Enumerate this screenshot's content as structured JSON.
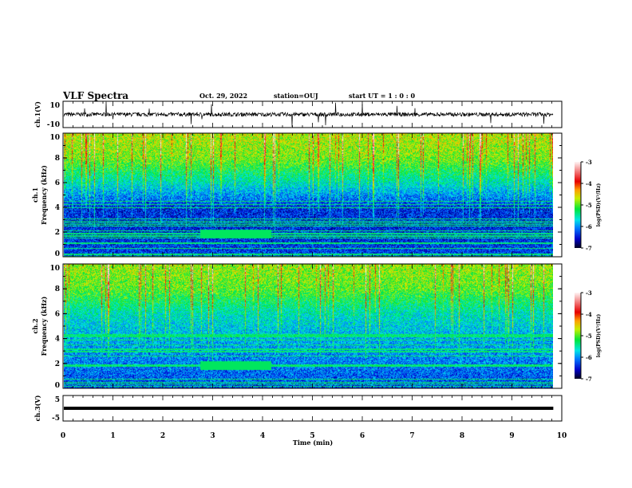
{
  "chart_data": {
    "type": "heatmap",
    "title": "VLF Spectra",
    "date": "Oct. 29, 2022",
    "station": "station=OUJ",
    "start": "start  UT =   1 : 0  : 0",
    "xlabel": "Time  (min)",
    "xlim": [
      0,
      10
    ],
    "xticks": [
      "0",
      "1",
      "2",
      "3",
      "4",
      "5",
      "6",
      "7",
      "8",
      "9",
      "10"
    ],
    "data_end_min": 9.83,
    "panels": [
      {
        "id": "ch1",
        "type": "line",
        "ylabel": "ch.1(V)",
        "ylim": [
          -10,
          10
        ],
        "yticks": [
          "10",
          "-10"
        ],
        "mean": 0,
        "noise_amplitude": 1.5
      },
      {
        "id": "spec1",
        "type": "heatmap",
        "ylabel1": "ch.1",
        "ylabel2": "Frequency  (kHz)",
        "ylim": [
          0,
          10
        ],
        "yticks": [
          "0",
          "2",
          "4",
          "6",
          "8",
          "10"
        ],
        "freq_bands_khz": [
          0,
          2,
          4,
          6,
          8,
          10
        ],
        "band_mean_logpsd": [
          -6.3,
          -6.4,
          -6.4,
          -5.6,
          -4.9,
          -4.7
        ],
        "colorbar": {
          "label": "log(PSD)(V²/Hz)",
          "range": [
            -7,
            -3
          ],
          "ticks": [
            "-3",
            "-4",
            "-5",
            "-6",
            "-7"
          ]
        }
      },
      {
        "id": "spec2",
        "type": "heatmap",
        "ylabel1": "ch.2",
        "ylabel2": "Frequency  (kHz)",
        "ylim": [
          0,
          10
        ],
        "yticks": [
          "0",
          "2",
          "4",
          "6",
          "8",
          "10"
        ],
        "freq_bands_khz": [
          0,
          2,
          4,
          6,
          8,
          10
        ],
        "band_mean_logpsd": [
          -6.3,
          -6.1,
          -5.9,
          -5.6,
          -5.0,
          -4.8
        ],
        "colorbar": {
          "label": "log(PSD)(V²/Hz)",
          "range": [
            -7,
            -3
          ],
          "ticks": [
            "-3",
            "-4",
            "-5",
            "-6",
            "-7"
          ]
        }
      },
      {
        "id": "ch3",
        "type": "line",
        "ylabel": "ch.3(V)",
        "ylim": [
          -5,
          5
        ],
        "yticks": [
          "5",
          "-5"
        ],
        "mean": 0,
        "noise_amplitude": 0
      }
    ]
  }
}
